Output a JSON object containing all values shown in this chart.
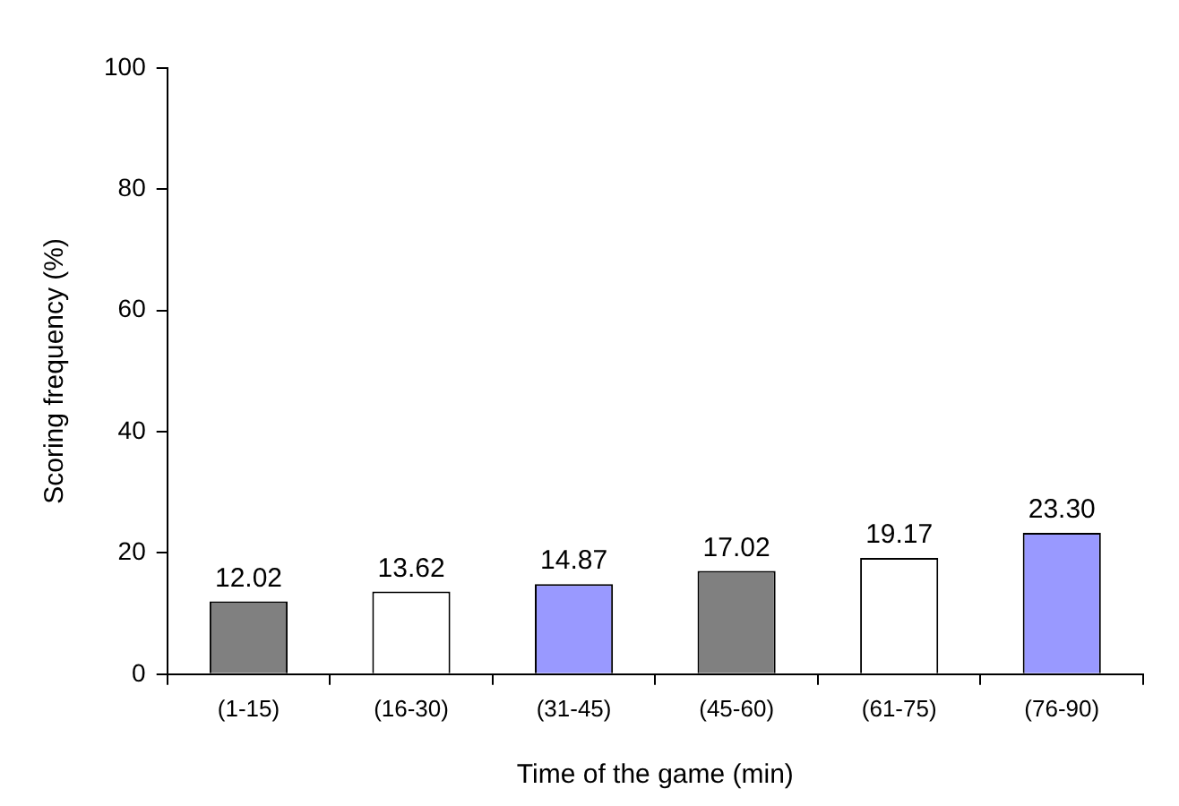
{
  "chart_data": {
    "type": "bar",
    "xlabel": "Time of the game (min)",
    "ylabel": "Scoring frequency (%)",
    "categories": [
      "(1-15)",
      "(16-30)",
      "(31-45)",
      "(45-60)",
      "(61-75)",
      "(76-90)"
    ],
    "values": [
      12.02,
      13.62,
      14.87,
      17.02,
      19.17,
      23.3
    ],
    "colors": [
      "#808080",
      "#ffffff",
      "#9999ff",
      "#808080",
      "#ffffff",
      "#9999ff"
    ],
    "value_labels": [
      "12.02",
      "13.62",
      "14.87",
      "17.02",
      "19.17",
      "23.30"
    ],
    "ylim": [
      0,
      100
    ],
    "yticks": [
      0,
      20,
      40,
      60,
      80,
      100
    ],
    "grid": false,
    "legend": false
  }
}
